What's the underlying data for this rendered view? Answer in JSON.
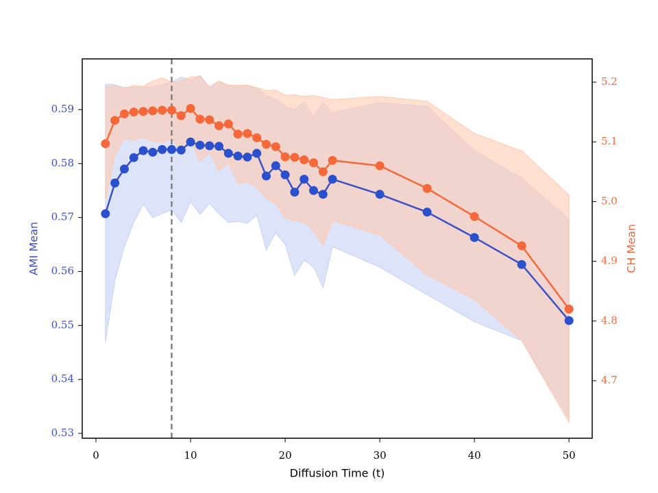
{
  "chart_data": {
    "type": "line",
    "xlabel": "Diffusion Time (t)",
    "ylabel": "AMI Mean",
    "y2label": "CH Mean",
    "x": [
      1,
      2,
      3,
      4,
      5,
      6,
      7,
      8,
      9,
      10,
      11,
      12,
      13,
      14,
      15,
      16,
      17,
      18,
      19,
      20,
      21,
      22,
      23,
      24,
      25,
      30,
      35,
      40,
      45,
      50
    ],
    "xlim": [
      -1.45,
      52.45
    ],
    "xticks": [
      0,
      10,
      20,
      30,
      40,
      50
    ],
    "ylim": [
      0.5291,
      0.5994
    ],
    "yticks": [
      0.53,
      0.54,
      0.55,
      0.56,
      0.57,
      0.58,
      0.59
    ],
    "y2lim": [
      4.6037,
      5.239
    ],
    "y2ticks": [
      4.7,
      4.8,
      4.9,
      {
        "value": 5.0,
        "label": "5.0"
      },
      5.1,
      5.2
    ],
    "vline": {
      "x": 8,
      "color": "#808080"
    },
    "series": [
      {
        "name": "AMI Mean",
        "color": "#3c4fc4",
        "marker_color": "#2a50cc",
        "band_color": "#c6d0f4",
        "values": [
          0.5707,
          0.5764,
          0.579,
          0.5811,
          0.5824,
          0.5821,
          0.5826,
          0.5826,
          0.5825,
          0.584,
          0.5834,
          0.5833,
          0.5832,
          0.5819,
          0.5814,
          0.5812,
          0.5819,
          0.5777,
          0.5796,
          0.5779,
          0.5747,
          0.5771,
          0.575,
          0.5743,
          0.5771,
          0.5743,
          0.571,
          0.5663,
          0.5613,
          0.5509
        ],
        "upper": [
          0.5947,
          0.5946,
          0.5941,
          0.5942,
          0.5941,
          0.5943,
          0.5946,
          0.5951,
          0.596,
          0.5955,
          0.5963,
          0.5942,
          0.5953,
          0.5944,
          0.5942,
          0.5944,
          0.5941,
          0.5925,
          0.5919,
          0.5906,
          0.59,
          0.5913,
          0.5887,
          0.5913,
          0.5894,
          0.5913,
          0.5906,
          0.5824,
          0.5773,
          0.5697
        ],
        "lower": [
          0.5469,
          0.5583,
          0.5646,
          0.5691,
          0.5725,
          0.57,
          0.5707,
          0.5715,
          0.5691,
          0.5729,
          0.5706,
          0.5726,
          0.5707,
          0.5691,
          0.5693,
          0.5689,
          0.5705,
          0.564,
          0.5672,
          0.565,
          0.5593,
          0.5621,
          0.5608,
          0.557,
          0.5646,
          0.5608,
          0.5557,
          0.5507,
          0.5472,
          0.5327
        ]
      },
      {
        "name": "CH Mean",
        "axis": "y2",
        "color": "#f4683a",
        "marker_color": "#f4683a",
        "band_color": "#ffc9b0",
        "values": [
          5.097,
          5.136,
          5.147,
          5.15,
          5.151,
          5.152,
          5.153,
          5.153,
          5.144,
          5.156,
          5.138,
          5.137,
          5.127,
          5.13,
          5.113,
          5.114,
          5.107,
          5.096,
          5.092,
          5.075,
          5.074,
          5.07,
          5.065,
          5.05,
          5.069,
          5.06,
          5.022,
          4.975,
          4.926,
          4.82
        ],
        "upper": [
          5.191,
          5.194,
          5.189,
          5.195,
          5.193,
          5.202,
          5.207,
          5.2,
          5.202,
          5.209,
          5.209,
          5.191,
          5.202,
          5.195,
          5.195,
          5.195,
          5.191,
          5.186,
          5.187,
          5.178,
          5.179,
          5.176,
          5.178,
          5.174,
          5.171,
          5.176,
          5.168,
          5.114,
          5.085,
          5.011
        ],
        "lower": [
          5.003,
          5.077,
          5.106,
          5.103,
          5.108,
          5.101,
          5.099,
          5.106,
          5.085,
          5.103,
          5.067,
          5.083,
          5.051,
          5.065,
          5.03,
          5.033,
          5.023,
          5.005,
          4.997,
          4.972,
          4.968,
          4.965,
          4.951,
          4.926,
          4.968,
          4.944,
          4.877,
          4.836,
          4.767,
          4.63
        ]
      }
    ]
  }
}
